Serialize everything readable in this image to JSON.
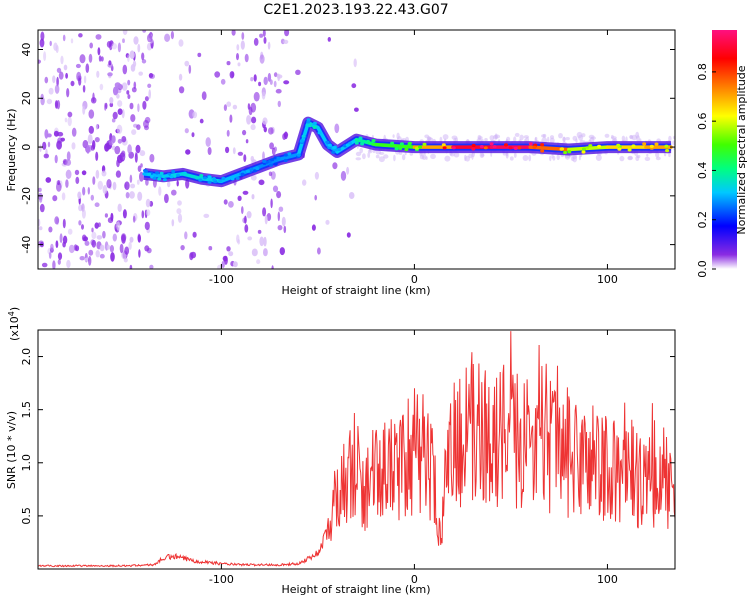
{
  "title": "C2E1.2023.193.22.43.G07",
  "chart_data": [
    {
      "type": "heatmap",
      "xlabel": "Height of straight line (km)",
      "ylabel": "Frequency (Hz)",
      "xlim": [
        -195,
        135
      ],
      "ylim": [
        -50,
        48
      ],
      "x_ticks": [
        -100,
        0,
        100
      ],
      "y_ticks": [
        -40,
        -20,
        0,
        20,
        40
      ],
      "colorbar": {
        "label": "Normalized spectral amplitude",
        "range": [
          0,
          0.97
        ],
        "ticks": [
          0.0,
          0.2,
          0.4,
          0.6,
          0.8
        ],
        "colormap": [
          "#ffffff",
          "#7f00ff",
          "#0000ff",
          "#00c8ff",
          "#00ff80",
          "#80ff00",
          "#ffff00",
          "#ff8000",
          "#ff0000",
          "#ff0080"
        ]
      },
      "trace_points": [
        {
          "x": -140,
          "y": -11
        },
        {
          "x": -130,
          "y": -12
        },
        {
          "x": -120,
          "y": -11
        },
        {
          "x": -110,
          "y": -13
        },
        {
          "x": -100,
          "y": -14
        },
        {
          "x": -90,
          "y": -11
        },
        {
          "x": -80,
          "y": -8
        },
        {
          "x": -70,
          "y": -5
        },
        {
          "x": -60,
          "y": -3
        },
        {
          "x": -55,
          "y": 10
        },
        {
          "x": -50,
          "y": 8
        },
        {
          "x": -45,
          "y": 1
        },
        {
          "x": -40,
          "y": -2
        },
        {
          "x": -30,
          "y": 3
        },
        {
          "x": -20,
          "y": 1
        },
        {
          "x": 0,
          "y": 0
        },
        {
          "x": 20,
          "y": 0
        },
        {
          "x": 40,
          "y": 0
        },
        {
          "x": 60,
          "y": 0
        },
        {
          "x": 80,
          "y": -1
        },
        {
          "x": 100,
          "y": 0
        },
        {
          "x": 120,
          "y": 0
        },
        {
          "x": 133,
          "y": 0
        }
      ],
      "trace_amplitude": [
        0.3,
        0.32,
        0.35,
        0.35,
        0.32,
        0.3,
        0.28,
        0.27,
        0.3,
        0.35,
        0.35,
        0.3,
        0.3,
        0.35,
        0.45,
        0.55,
        0.9,
        0.95,
        0.97,
        0.6,
        0.6,
        0.75,
        0.7
      ]
    },
    {
      "type": "line",
      "xlabel": "Height of straight line (km)",
      "ylabel": "SNR (10 * v/v)",
      "y_multiplier": "(x10",
      "y_multiplier_exp": "4",
      "y_multiplier_close": ")",
      "xlim": [
        -195,
        135
      ],
      "ylim": [
        0,
        2.25
      ],
      "x_ticks": [
        -100,
        0,
        100
      ],
      "y_ticks": [
        0.5,
        1.0,
        1.5,
        2.0
      ],
      "y_tick_labels": [
        "0.5",
        "1.0",
        "1.5",
        "2.0"
      ],
      "series": [
        {
          "color": "#ee3333",
          "x": [
            -195,
            -170,
            -150,
            -135,
            -130,
            -125,
            -120,
            -115,
            -110,
            -100,
            -90,
            -80,
            -70,
            -60,
            -50,
            -45,
            -42,
            -40,
            -38,
            -35,
            -32,
            -30,
            -25,
            -20,
            -15,
            -10,
            -5,
            0,
            5,
            10,
            12,
            14,
            16,
            20,
            30,
            40,
            50,
            60,
            70,
            80,
            90,
            100,
            110,
            120,
            133
          ],
          "y": [
            0.03,
            0.03,
            0.03,
            0.04,
            0.1,
            0.12,
            0.1,
            0.08,
            0.07,
            0.05,
            0.04,
            0.04,
            0.04,
            0.05,
            0.15,
            0.35,
            0.6,
            0.8,
            0.7,
            0.9,
            0.85,
            0.8,
            0.75,
            0.9,
            0.95,
            0.9,
            1.0,
            1.1,
            1.15,
            0.9,
            0.4,
            0.25,
            0.8,
            1.2,
            1.25,
            1.3,
            1.25,
            1.2,
            1.15,
            1.05,
            1.0,
            0.95,
            0.85,
            0.85,
            0.8
          ]
        }
      ]
    }
  ]
}
